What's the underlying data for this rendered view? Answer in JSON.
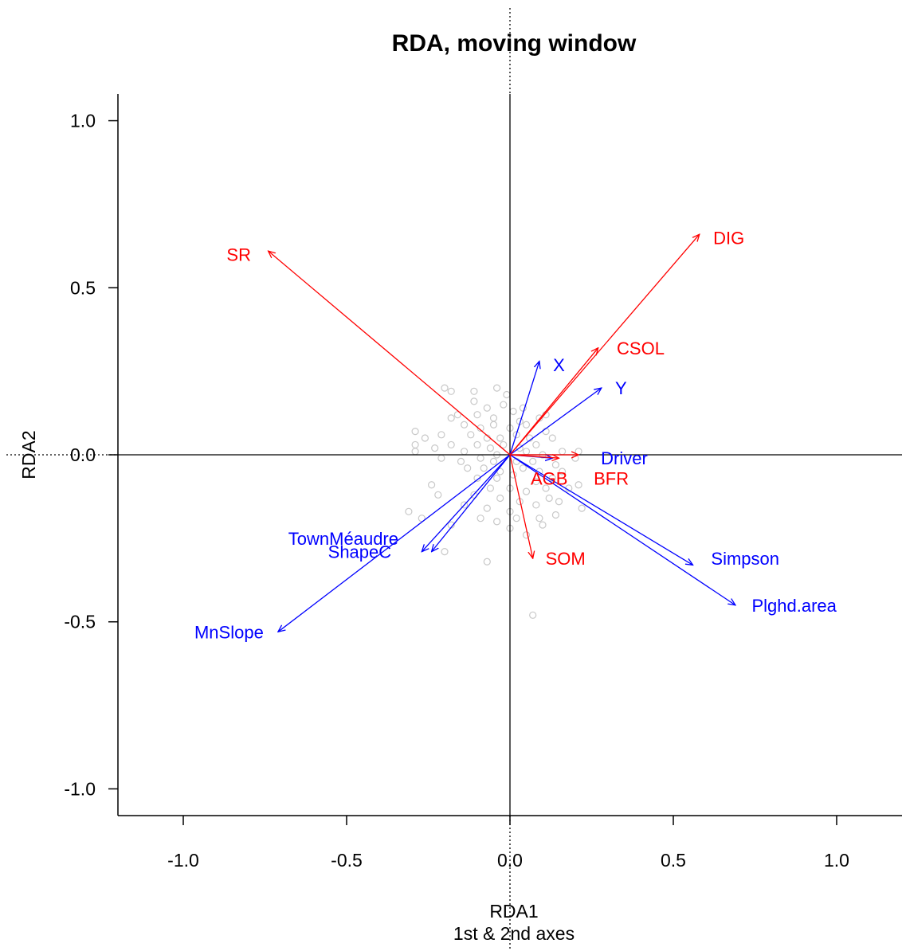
{
  "chart_data": {
    "type": "scatter",
    "title": "RDA, moving window",
    "xlabel": "RDA1",
    "xlabel_sub": "1st & 2nd axes",
    "ylabel": "RDA2",
    "xlim": [
      -1.2,
      1.2
    ],
    "ylim": [
      -1.08,
      1.08
    ],
    "x_ticks": [
      -1.0,
      -0.5,
      0.0,
      0.5,
      1.0
    ],
    "y_ticks": [
      -1.0,
      -0.5,
      0.0,
      0.5,
      1.0
    ],
    "x_tick_labels": [
      "-1.0",
      "-0.5",
      "0.0",
      "0.5",
      "1.0"
    ],
    "y_tick_labels": [
      "-1.0",
      "-0.5",
      "0.0",
      "0.5",
      "1.0"
    ],
    "colors": {
      "response": "#ff0000",
      "explanatory": "#0000ff",
      "sites": "#c8c8c8",
      "axes": "#000000"
    },
    "response_vectors": [
      {
        "name": "SR",
        "x": -0.74,
        "y": 0.61,
        "label_x": -0.83,
        "label_y": 0.6
      },
      {
        "name": "DIG",
        "x": 0.58,
        "y": 0.66,
        "label_x": 0.67,
        "label_y": 0.65
      },
      {
        "name": "CSOL",
        "x": 0.27,
        "y": 0.32,
        "label_x": 0.4,
        "label_y": 0.32
      },
      {
        "name": "AGB",
        "x": 0.15,
        "y": -0.01,
        "label_x": 0.12,
        "label_y": -0.07
      },
      {
        "name": "BFR",
        "x": 0.21,
        "y": 0.0,
        "label_x": 0.31,
        "label_y": -0.07
      },
      {
        "name": "SOM",
        "x": 0.07,
        "y": -0.31,
        "label_x": 0.17,
        "label_y": -0.31
      }
    ],
    "explanatory_vectors": [
      {
        "name": "X",
        "x": 0.09,
        "y": 0.28,
        "label_x": 0.15,
        "label_y": 0.27
      },
      {
        "name": "Y",
        "x": 0.28,
        "y": 0.2,
        "label_x": 0.34,
        "label_y": 0.2
      },
      {
        "name": "Driver",
        "x": 0.13,
        "y": -0.01,
        "label_x": 0.35,
        "label_y": -0.01
      },
      {
        "name": "Simpson",
        "x": 0.56,
        "y": -0.33,
        "label_x": 0.72,
        "label_y": -0.31
      },
      {
        "name": "Plghd.area",
        "x": 0.69,
        "y": -0.45,
        "label_x": 0.87,
        "label_y": -0.45
      },
      {
        "name": "TownMéaudre",
        "x": -0.27,
        "y": -0.29,
        "label_x": -0.51,
        "label_y": -0.25
      },
      {
        "name": "ShapeC",
        "x": -0.24,
        "y": -0.29,
        "label_x": -0.46,
        "label_y": -0.29
      },
      {
        "name": "MnSlope",
        "x": -0.71,
        "y": -0.53,
        "label_x": -0.86,
        "label_y": -0.53
      }
    ],
    "sites": [
      [
        -0.2,
        0.2
      ],
      [
        -0.18,
        0.19
      ],
      [
        -0.11,
        0.19
      ],
      [
        -0.04,
        0.2
      ],
      [
        -0.11,
        0.16
      ],
      [
        -0.07,
        0.14
      ],
      [
        -0.02,
        0.15
      ],
      [
        -0.16,
        0.12
      ],
      [
        -0.18,
        0.11
      ],
      [
        -0.1,
        0.12
      ],
      [
        -0.05,
        0.11
      ],
      [
        0.01,
        0.13
      ],
      [
        0.03,
        0.1
      ],
      [
        0.09,
        0.11
      ],
      [
        0.11,
        0.12
      ],
      [
        -0.14,
        0.09
      ],
      [
        -0.09,
        0.08
      ],
      [
        -0.05,
        0.09
      ],
      [
        0.0,
        0.08
      ],
      [
        0.05,
        0.09
      ],
      [
        -0.29,
        0.07
      ],
      [
        -0.26,
        0.05
      ],
      [
        -0.21,
        0.06
      ],
      [
        -0.12,
        0.06
      ],
      [
        -0.07,
        0.05
      ],
      [
        -0.03,
        0.05
      ],
      [
        0.02,
        0.06
      ],
      [
        0.06,
        0.05
      ],
      [
        0.11,
        0.07
      ],
      [
        0.13,
        0.05
      ],
      [
        -0.18,
        0.03
      ],
      [
        -0.1,
        0.03
      ],
      [
        -0.06,
        0.02
      ],
      [
        -0.02,
        0.03
      ],
      [
        0.03,
        0.02
      ],
      [
        0.08,
        0.03
      ],
      [
        -0.29,
        0.03
      ],
      [
        -0.23,
        0.02
      ],
      [
        -0.14,
        0.01
      ],
      [
        -0.04,
        0.0
      ],
      [
        0.05,
        0.01
      ],
      [
        0.1,
        0.0
      ],
      [
        0.16,
        0.01
      ],
      [
        0.2,
        -0.01
      ],
      [
        0.21,
        0.01
      ],
      [
        -0.29,
        0.01
      ],
      [
        -0.21,
        -0.01
      ],
      [
        -0.15,
        -0.02
      ],
      [
        -0.09,
        -0.01
      ],
      [
        -0.05,
        -0.02
      ],
      [
        0.02,
        -0.02
      ],
      [
        0.07,
        -0.02
      ],
      [
        0.14,
        -0.03
      ],
      [
        -0.13,
        -0.04
      ],
      [
        -0.08,
        -0.04
      ],
      [
        -0.03,
        -0.05
      ],
      [
        0.04,
        -0.04
      ],
      [
        0.09,
        -0.05
      ],
      [
        0.16,
        -0.05
      ],
      [
        -0.1,
        -0.07
      ],
      [
        -0.04,
        -0.07
      ],
      [
        0.01,
        -0.06
      ],
      [
        0.08,
        -0.08
      ],
      [
        0.13,
        -0.07
      ],
      [
        0.21,
        -0.09
      ],
      [
        -0.06,
        -0.1
      ],
      [
        0.0,
        -0.1
      ],
      [
        0.05,
        -0.11
      ],
      [
        0.11,
        -0.1
      ],
      [
        0.18,
        -0.1
      ],
      [
        -0.24,
        -0.09
      ],
      [
        -0.22,
        -0.12
      ],
      [
        -0.11,
        -0.12
      ],
      [
        -0.03,
        -0.13
      ],
      [
        0.03,
        -0.14
      ],
      [
        0.12,
        -0.13
      ],
      [
        0.15,
        -0.14
      ],
      [
        -0.14,
        -0.15
      ],
      [
        -0.07,
        -0.16
      ],
      [
        0.0,
        -0.17
      ],
      [
        0.08,
        -0.15
      ],
      [
        0.22,
        -0.16
      ],
      [
        -0.31,
        -0.17
      ],
      [
        -0.27,
        -0.19
      ],
      [
        -0.09,
        -0.19
      ],
      [
        -0.04,
        -0.2
      ],
      [
        0.02,
        -0.19
      ],
      [
        0.09,
        -0.19
      ],
      [
        0.14,
        -0.18
      ],
      [
        -0.18,
        -0.21
      ],
      [
        0.0,
        -0.22
      ],
      [
        0.05,
        -0.24
      ],
      [
        -0.2,
        -0.29
      ],
      [
        -0.07,
        -0.32
      ],
      [
        0.07,
        -0.48
      ],
      [
        0.1,
        -0.21
      ],
      [
        0.04,
        0.14
      ],
      [
        -0.01,
        0.18
      ]
    ]
  }
}
